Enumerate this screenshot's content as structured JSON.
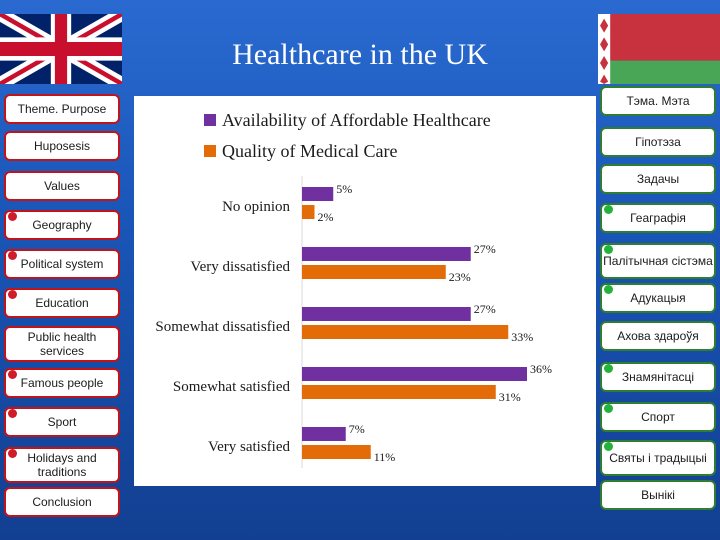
{
  "header": {
    "title": "Healthcare in the UK"
  },
  "colors": {
    "accent_red": "#c0141a",
    "accent_green": "#2e7d32",
    "bg_blue": "#1a56b8"
  },
  "left_nav": [
    {
      "label": "Theme. Purpose",
      "dot": false
    },
    {
      "label": "Huposesis",
      "dot": false
    },
    {
      "label": "Values",
      "dot": false
    },
    {
      "label": "Geography",
      "dot": true
    },
    {
      "label": "Political system",
      "dot": true
    },
    {
      "label": "Education",
      "dot": true
    },
    {
      "label": "Public health services",
      "dot": false
    },
    {
      "label": "Famous people",
      "dot": true
    },
    {
      "label": "Sport",
      "dot": true
    },
    {
      "label": "Holidays and traditions",
      "dot": true
    },
    {
      "label": "Conclusion",
      "dot": false
    }
  ],
  "right_nav": [
    {
      "label": "Тэма. Мэта",
      "dot": false
    },
    {
      "label": "Гіпотэза",
      "dot": false
    },
    {
      "label": "Задачы",
      "dot": false
    },
    {
      "label": "Геаграфія",
      "dot": true
    },
    {
      "label": "Палітычная сістэма",
      "dot": true
    },
    {
      "label": "Адукацыя",
      "dot": true
    },
    {
      "label": "Ахова здароўя",
      "dot": false
    },
    {
      "label": "Знамянітасці",
      "dot": true
    },
    {
      "label": "Спорт",
      "dot": true
    },
    {
      "label": "Святы і традыцыі",
      "dot": true
    },
    {
      "label": "Вынікі",
      "dot": false
    }
  ],
  "chart_data": {
    "type": "bar",
    "orientation": "horizontal",
    "title": "",
    "categories": [
      "No opinion",
      "Very dissatisfied",
      "Somewhat dissatisfied",
      "Somewhat satisfied",
      "Very satisfied"
    ],
    "series": [
      {
        "name": "Availability of Affordable Healthcare",
        "color": "#7030a0",
        "values": [
          5,
          27,
          27,
          36,
          7
        ]
      },
      {
        "name": "Quality of Medical Care",
        "color": "#e36c09",
        "values": [
          2,
          23,
          33,
          31,
          11
        ]
      }
    ],
    "value_suffix": "%",
    "xlim": [
      0,
      40
    ],
    "legend_position": "top",
    "grid": false
  }
}
